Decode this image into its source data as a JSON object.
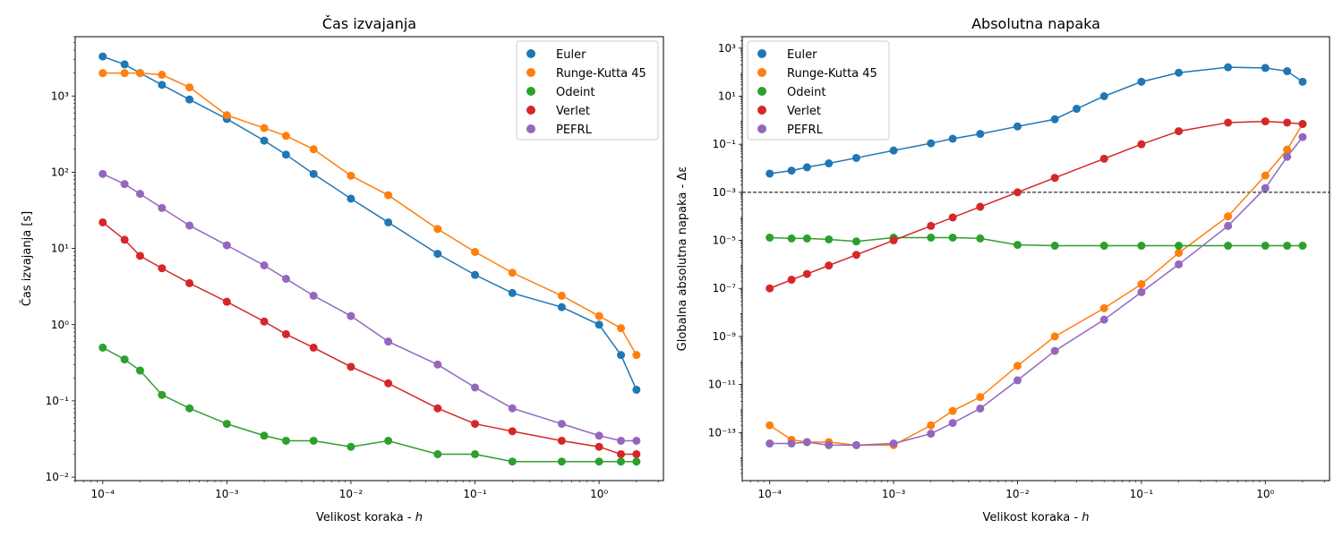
{
  "chart_data": [
    {
      "type": "line",
      "title": "Čas izvajanja",
      "xlabel_text": "Velikost koraka - ",
      "xlabel_var": "h",
      "ylabel": "Čas izvajanja [s]",
      "xscale": "log",
      "yscale": "log",
      "xlim": [
        6e-05,
        3.3
      ],
      "ylim": [
        0.009,
        6000
      ],
      "legend_position": "upper-right",
      "series": [
        {
          "name": "Euler",
          "color": "#1f77b4",
          "x": [
            0.0001,
            0.00015,
            0.0002,
            0.0003,
            0.0005,
            0.001,
            0.002,
            0.003,
            0.005,
            0.01,
            0.02,
            0.05,
            0.1,
            0.2,
            0.5,
            1.0,
            1.5,
            2.0
          ],
          "y": [
            3300,
            2600,
            2000,
            1400,
            900,
            500,
            260,
            170,
            95,
            45,
            22,
            8.5,
            4.5,
            2.6,
            1.7,
            1.0,
            0.4,
            0.14
          ]
        },
        {
          "name": "Runge-Kutta 45",
          "color": "#ff7f0e",
          "x": [
            0.0001,
            0.00015,
            0.0002,
            0.0003,
            0.0005,
            0.001,
            0.002,
            0.003,
            0.005,
            0.01,
            0.02,
            0.05,
            0.1,
            0.2,
            0.5,
            1.0,
            1.5,
            2.0
          ],
          "y": [
            2000,
            2000,
            2000,
            1900,
            1300,
            560,
            380,
            300,
            200,
            90,
            50,
            18,
            9,
            4.8,
            2.4,
            1.3,
            0.9,
            0.4
          ]
        },
        {
          "name": "Odeint",
          "color": "#2ca02c",
          "x": [
            0.0001,
            0.00015,
            0.0002,
            0.0003,
            0.0005,
            0.001,
            0.002,
            0.003,
            0.005,
            0.01,
            0.02,
            0.05,
            0.1,
            0.2,
            0.5,
            1.0,
            1.5,
            2.0
          ],
          "y": [
            0.5,
            0.35,
            0.25,
            0.12,
            0.08,
            0.05,
            0.035,
            0.03,
            0.03,
            0.025,
            0.03,
            0.02,
            0.02,
            0.016,
            0.016,
            0.016,
            0.016,
            0.016
          ]
        },
        {
          "name": "Verlet",
          "color": "#d62728",
          "x": [
            0.0001,
            0.00015,
            0.0002,
            0.0003,
            0.0005,
            0.001,
            0.002,
            0.003,
            0.005,
            0.01,
            0.02,
            0.05,
            0.1,
            0.2,
            0.5,
            1.0,
            1.5,
            2.0
          ],
          "y": [
            22,
            13,
            8,
            5.5,
            3.5,
            2.0,
            1.1,
            0.75,
            0.5,
            0.28,
            0.17,
            0.08,
            0.05,
            0.04,
            0.03,
            0.025,
            0.02,
            0.02
          ]
        },
        {
          "name": "PEFRL",
          "color": "#9467bd",
          "x": [
            0.0001,
            0.00015,
            0.0002,
            0.0003,
            0.0005,
            0.001,
            0.002,
            0.003,
            0.005,
            0.01,
            0.02,
            0.05,
            0.1,
            0.2,
            0.5,
            1.0,
            1.5,
            2.0
          ],
          "y": [
            95,
            70,
            52,
            34,
            20,
            11,
            6,
            4,
            2.4,
            1.3,
            0.6,
            0.3,
            0.15,
            0.08,
            0.05,
            0.035,
            0.03,
            0.03
          ]
        }
      ]
    },
    {
      "type": "line",
      "title": "Absolutna napaka",
      "xlabel_text": "Velikost koraka - ",
      "xlabel_var": "h",
      "ylabel": "Globalna absolutna napaka - Δε",
      "xscale": "log",
      "yscale": "log",
      "xlim": [
        6e-05,
        3.3
      ],
      "ylim": [
        1e-15,
        3000
      ],
      "hline": {
        "y": 0.001,
        "style": "dashed",
        "color": "#000000"
      },
      "legend_position": "upper-left",
      "series": [
        {
          "name": "Euler",
          "color": "#1f77b4",
          "x": [
            0.0001,
            0.00015,
            0.0002,
            0.0003,
            0.0005,
            0.001,
            0.002,
            0.003,
            0.005,
            0.01,
            0.02,
            0.03,
            0.05,
            0.1,
            0.2,
            0.5,
            1.0,
            1.5,
            2.0
          ],
          "y": [
            0.006,
            0.008,
            0.011,
            0.016,
            0.027,
            0.055,
            0.11,
            0.17,
            0.27,
            0.55,
            1.1,
            3,
            10,
            40,
            95,
            160,
            150,
            110,
            40
          ]
        },
        {
          "name": "Runge-Kutta 45",
          "color": "#ff7f0e",
          "x": [
            0.0001,
            0.00015,
            0.0002,
            0.0003,
            0.0005,
            0.001,
            0.002,
            0.003,
            0.005,
            0.01,
            0.02,
            0.05,
            0.1,
            0.2,
            0.5,
            1.0,
            1.5,
            2.0
          ],
          "y": [
            2e-13,
            5e-14,
            4e-14,
            4e-14,
            3e-14,
            3e-14,
            2e-13,
            8e-13,
            3e-12,
            6e-11,
            1e-09,
            1.5e-08,
            1.5e-07,
            3e-06,
            0.0001,
            0.005,
            0.06,
            0.7
          ]
        },
        {
          "name": "Odeint",
          "color": "#2ca02c",
          "x": [
            0.0001,
            0.00015,
            0.0002,
            0.0003,
            0.0005,
            0.001,
            0.002,
            0.003,
            0.005,
            0.01,
            0.02,
            0.05,
            0.1,
            0.2,
            0.5,
            1.0,
            1.5,
            2.0
          ],
          "y": [
            1.3e-05,
            1.2e-05,
            1.2e-05,
            1.1e-05,
            9e-06,
            1.3e-05,
            1.3e-05,
            1.3e-05,
            1.2e-05,
            6.5e-06,
            6e-06,
            6e-06,
            6e-06,
            6e-06,
            6e-06,
            6e-06,
            6e-06,
            6e-06
          ]
        },
        {
          "name": "Verlet",
          "color": "#d62728",
          "x": [
            0.0001,
            0.00015,
            0.0002,
            0.0003,
            0.0005,
            0.001,
            0.002,
            0.003,
            0.005,
            0.01,
            0.02,
            0.05,
            0.1,
            0.2,
            0.5,
            1.0,
            1.5,
            2.0
          ],
          "y": [
            1e-07,
            2.3e-07,
            4e-07,
            9e-07,
            2.5e-06,
            1e-05,
            4e-05,
            9e-05,
            0.00025,
            0.001,
            0.004,
            0.025,
            0.1,
            0.35,
            0.8,
            0.9,
            0.8,
            0.7
          ]
        },
        {
          "name": "PEFRL",
          "color": "#9467bd",
          "x": [
            0.0001,
            0.00015,
            0.0002,
            0.0003,
            0.0005,
            0.001,
            0.002,
            0.003,
            0.005,
            0.01,
            0.02,
            0.05,
            0.1,
            0.2,
            0.5,
            1.0,
            1.5,
            2.0
          ],
          "y": [
            3.5e-14,
            3.5e-14,
            4e-14,
            3e-14,
            3e-14,
            3.5e-14,
            9e-14,
            2.5e-13,
            1e-12,
            1.5e-11,
            2.5e-10,
            5e-09,
            7e-08,
            1e-06,
            4e-05,
            0.0015,
            0.03,
            0.2
          ]
        }
      ]
    }
  ]
}
